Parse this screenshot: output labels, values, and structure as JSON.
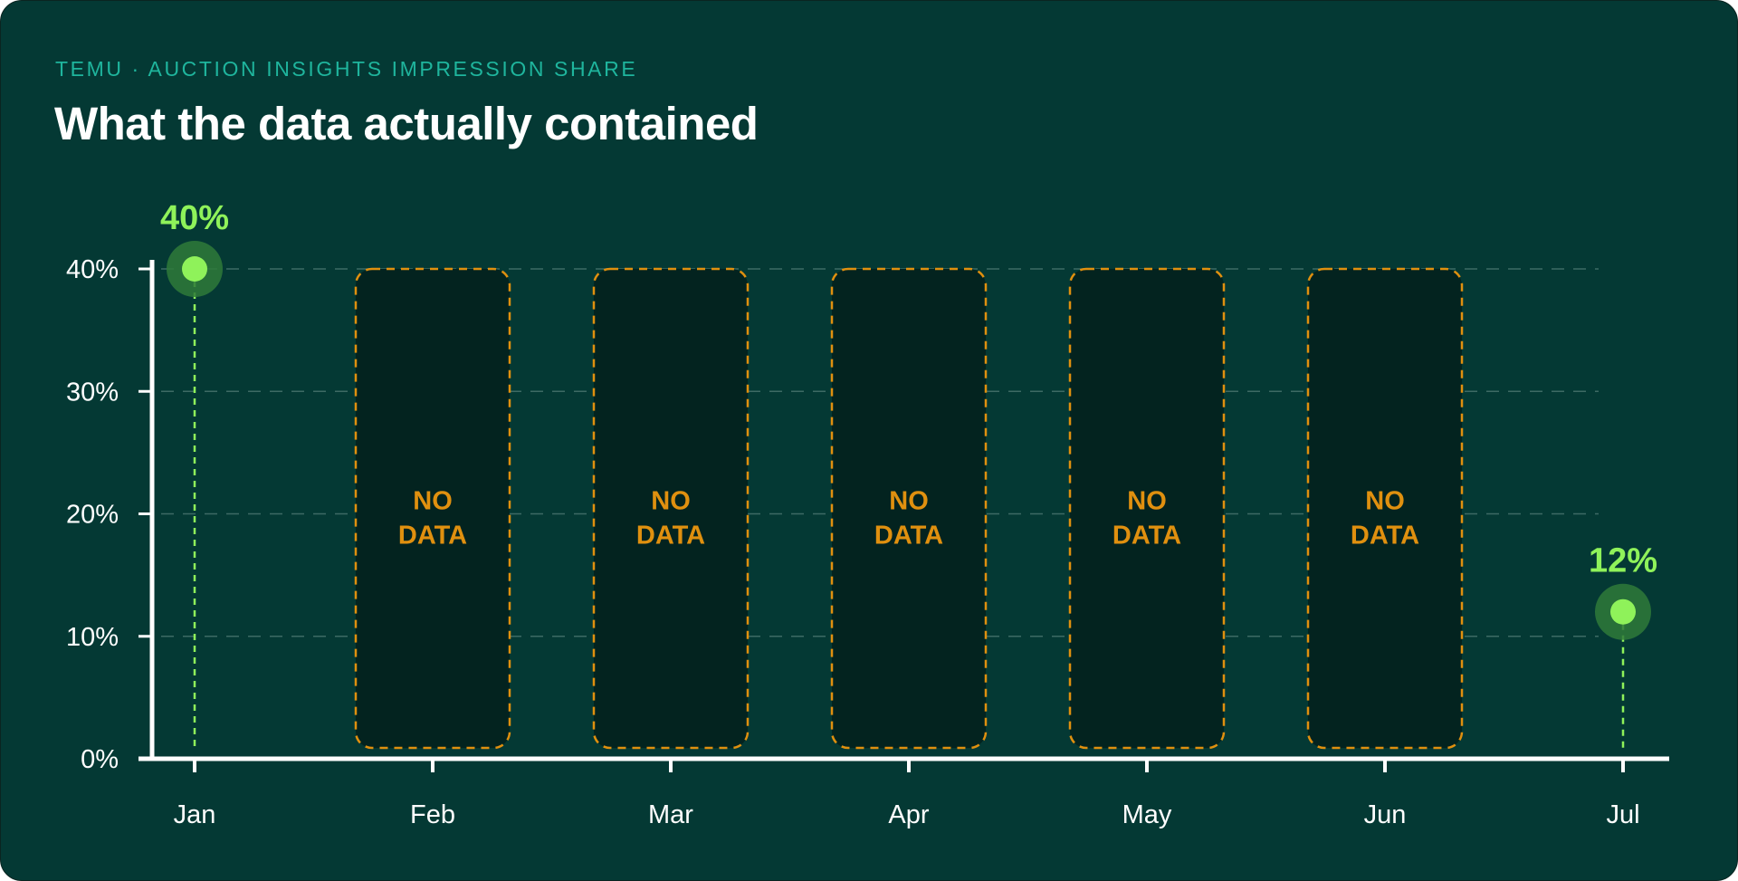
{
  "header": {
    "eyebrow": "TEMU · AUCTION INSIGHTS IMPRESSION SHARE",
    "title": "What the data actually contained"
  },
  "colors": {
    "background": "#043934",
    "gap_fill": "#03231f",
    "gap_stroke": "#e0900f",
    "point": "#8ff25a",
    "point_halo": "#2f7a3a",
    "grid": "#3d6a64",
    "axis": "#ffffff",
    "eyebrow": "#1fb59d"
  },
  "chart_data": {
    "type": "scatter",
    "categories": [
      "Jan",
      "Feb",
      "Mar",
      "Apr",
      "May",
      "Jun",
      "Jul"
    ],
    "values": [
      40,
      null,
      null,
      null,
      null,
      null,
      12
    ],
    "value_labels": [
      "40%",
      "",
      "",
      "",
      "",
      "",
      "12%"
    ],
    "gap_label": [
      "NO",
      "DATA"
    ],
    "ylim": [
      0,
      40
    ],
    "yticks": [
      0,
      10,
      20,
      30,
      40
    ],
    "ytick_labels": [
      "0%",
      "10%",
      "20%",
      "30%",
      "40%"
    ],
    "grid": true,
    "xlabel": "",
    "ylabel": ""
  }
}
